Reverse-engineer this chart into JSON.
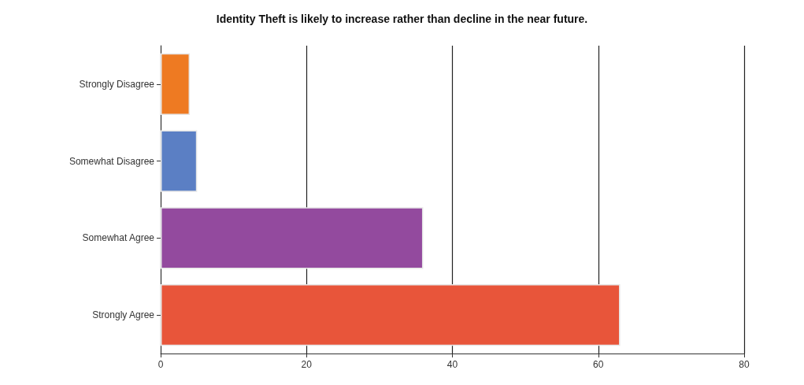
{
  "chart_data": {
    "type": "bar",
    "orientation": "horizontal",
    "title": "Identity Theft is likely to increase rather than decline in the near future.",
    "categories": [
      "Strongly Disagree",
      "Somewhat Disagree",
      "Somewhat Agree",
      "Strongly Agree"
    ],
    "values": [
      4,
      5,
      36,
      63
    ],
    "colors": [
      "#ee7a22",
      "#5b7fc4",
      "#934a9e",
      "#e8553a"
    ],
    "xlim": [
      0,
      80
    ],
    "xticks": [
      0,
      20,
      40,
      60,
      80
    ],
    "grid": "x"
  }
}
